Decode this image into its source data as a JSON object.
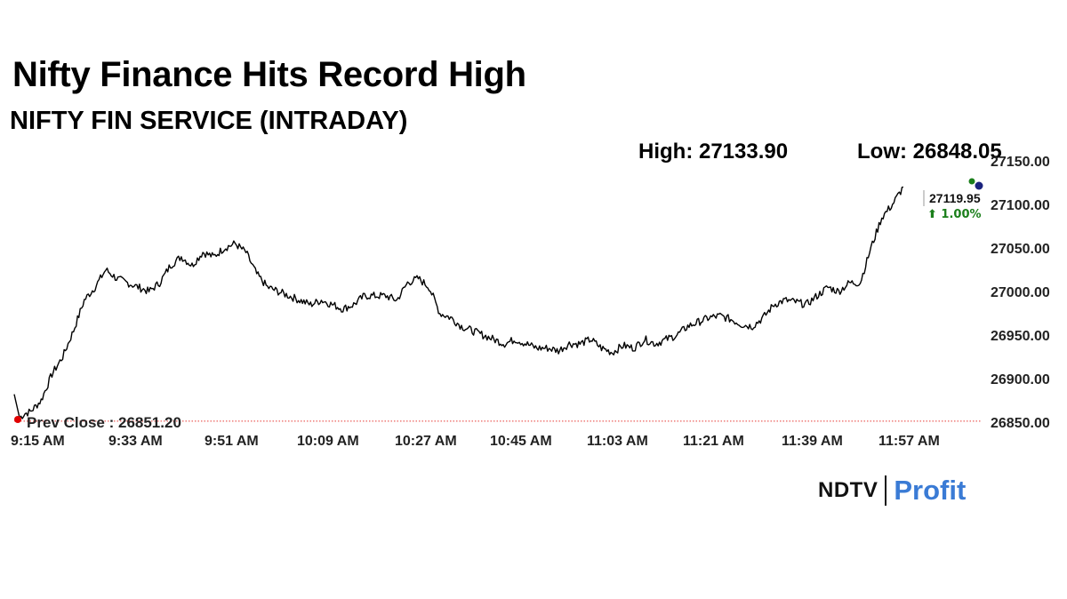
{
  "header": {
    "title": "Nifty Finance Hits Record High",
    "subtitle": "NIFTY FIN SERVICE (INTRADAY)",
    "high_text": "High: 27133.90",
    "low_text": "Low: 26848.05"
  },
  "brand": {
    "ndtv": "NDTV",
    "profit": "Profit"
  },
  "colors": {
    "line": "#000000",
    "prev_close_line": "#e53935",
    "change_up": "#1b7f1b",
    "profit_accent": "#3a7bd5"
  },
  "chart_data": {
    "type": "line",
    "title": "NIFTY FIN SERVICE (INTRADAY)",
    "x_ticks": [
      "9:15 AM",
      "9:33 AM",
      "9:51 AM",
      "10:09 AM",
      "10:27 AM",
      "10:45 AM",
      "11:03 AM",
      "11:21 AM",
      "11:39 AM",
      "11:57 AM"
    ],
    "y_ticks": [
      "26850.00",
      "26900.00",
      "26950.00",
      "27000.00",
      "27050.00",
      "27100.00",
      "27150.00"
    ],
    "ylim": [
      26850,
      27150
    ],
    "grid": false,
    "prev_close": {
      "label": "Prev Close : 26851.20",
      "value": 26851.2
    },
    "last": {
      "value_label": "27119.95",
      "change_label": "⬆ 1.00%",
      "value": 27119.95
    },
    "high": 27133.9,
    "low": 26848.05,
    "series": [
      {
        "x": [
          "9:15",
          "9:16",
          "9:17",
          "9:18",
          "9:20",
          "9:22",
          "9:24",
          "9:26",
          "9:28",
          "9:30",
          "9:32",
          "9:34",
          "9:36",
          "9:38",
          "9:40",
          "9:42",
          "9:44",
          "9:46",
          "9:48",
          "9:50",
          "9:52",
          "9:54",
          "9:56",
          "9:58",
          "10:00",
          "10:02",
          "10:04",
          "10:06",
          "10:08",
          "10:10",
          "10:12",
          "10:14",
          "10:16",
          "10:18",
          "10:20",
          "10:22",
          "10:24",
          "10:26",
          "10:28",
          "10:30",
          "10:32",
          "10:34",
          "10:36",
          "10:38",
          "10:40",
          "10:42",
          "10:44",
          "10:46",
          "10:48",
          "10:50",
          "10:52",
          "10:54",
          "10:56",
          "10:58",
          "11:00",
          "11:02",
          "11:04",
          "11:06",
          "11:08",
          "11:10",
          "11:12",
          "11:14",
          "11:16",
          "11:18",
          "11:20",
          "11:22",
          "11:24",
          "11:26",
          "11:28",
          "11:30",
          "11:32",
          "11:34",
          "11:36",
          "11:38",
          "11:40",
          "11:42",
          "11:44",
          "11:46",
          "11:48",
          "11:50",
          "11:52",
          "11:54",
          "11:56",
          "11:58",
          "11:59",
          "12:00"
        ],
        "values": [
          26882,
          26855,
          26860,
          26862,
          26875,
          26905,
          26925,
          26955,
          26990,
          27005,
          27025,
          27015,
          27010,
          27005,
          27000,
          27010,
          27030,
          27040,
          27030,
          27045,
          27040,
          27050,
          27055,
          27045,
          27020,
          27005,
          27000,
          26995,
          26990,
          26985,
          26990,
          26985,
          26980,
          26985,
          26995,
          26995,
          26995,
          26990,
          27010,
          27015,
          27005,
          26975,
          26970,
          26960,
          26955,
          26950,
          26945,
          26940,
          26945,
          26940,
          26935,
          26935,
          26932,
          26940,
          26940,
          26945,
          26935,
          26930,
          26938,
          26935,
          26945,
          26940,
          26945,
          26950,
          26960,
          26965,
          26970,
          26972,
          26968,
          26962,
          26960,
          26970,
          26985,
          26990,
          26988,
          26985,
          26995,
          27005,
          27000,
          27010,
          27010,
          27050,
          27085,
          27100,
          27110,
          27119.95
        ]
      }
    ]
  }
}
